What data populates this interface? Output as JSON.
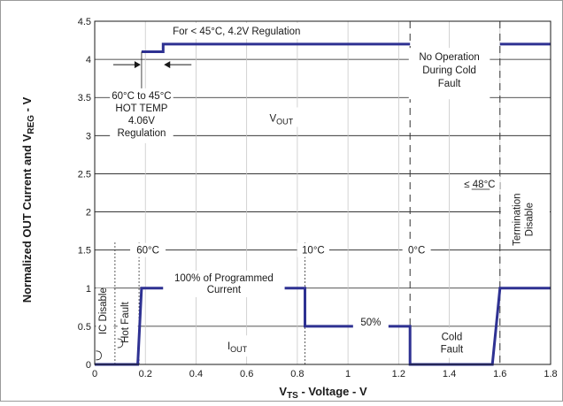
{
  "chart_data": {
    "type": "line",
    "xlabel": "V",
    "xlabel_sub": "TS",
    "xlabel_tail": " - Voltage  - V",
    "ylabel": "Normalized OUT Current and V",
    "ylabel_sub": "REG",
    "ylabel_tail": " - V",
    "xlim": [
      0,
      1.8
    ],
    "ylim": [
      0,
      4.5
    ],
    "x_ticks": [
      0,
      0.2,
      0.4,
      0.6,
      0.8,
      1,
      1.2,
      1.4,
      1.6,
      1.8
    ],
    "x_tick_labels": [
      "0",
      "0.2",
      "0.4",
      "0.6",
      "0.8",
      "1",
      "1.2",
      "1.4",
      "1.6",
      "1.8"
    ],
    "y_ticks": [
      0,
      0.5,
      1,
      1.5,
      2,
      2.5,
      3,
      3.5,
      4,
      4.5
    ],
    "y_tick_labels": [
      "0",
      "0.5",
      "1",
      "1.5",
      "2",
      "2.5",
      "3",
      "3.5",
      "4",
      "4.5"
    ],
    "grid": true,
    "series": [
      {
        "key": "iout",
        "color": "#2e3192",
        "points": [
          [
            0,
            0
          ],
          [
            0.17,
            0
          ],
          [
            0.185,
            1
          ],
          [
            0.83,
            1
          ],
          [
            0.83,
            0.5
          ],
          [
            1.245,
            0.5
          ],
          [
            1.245,
            0
          ],
          [
            1.57,
            0
          ],
          [
            1.6,
            1
          ],
          [
            1.8,
            1
          ]
        ]
      },
      {
        "key": "vout-a",
        "color": "#2e3192",
        "points": [
          [
            0.185,
            4.1
          ],
          [
            0.27,
            4.1
          ],
          [
            0.27,
            4.2
          ],
          [
            1.245,
            4.2
          ]
        ]
      },
      {
        "key": "vout-b",
        "color": "#2e3192",
        "points": [
          [
            1.6,
            4.2
          ],
          [
            1.8,
            4.2
          ]
        ]
      }
    ],
    "dashed_verticals": [
      0.08,
      0.175,
      0.83,
      1.245,
      1.6
    ],
    "text": {
      "regulation_42": "For < 45°C, 4.2V Regulation",
      "no_operation": [
        "No Operation",
        "During Cold",
        "Fault"
      ],
      "hot_temp": [
        "60°C to 45°C",
        "HOT TEMP",
        "4.06V",
        "Regulation"
      ],
      "vout": "V",
      "vout_sub": "OUT",
      "le48": "≤ 48°C",
      "termination": [
        "Termination",
        "Disable"
      ],
      "t60": "60°C",
      "t10": "10°C",
      "t0": "0°C",
      "programmed": [
        "100% of Programmed",
        "Current"
      ],
      "pct50": "50%",
      "iout": "I",
      "iout_sub": "OUT",
      "cold_fault": [
        "Cold",
        "Fault"
      ],
      "ic_disable": "IC Disable",
      "hot_fault": "Hot Fault"
    }
  }
}
